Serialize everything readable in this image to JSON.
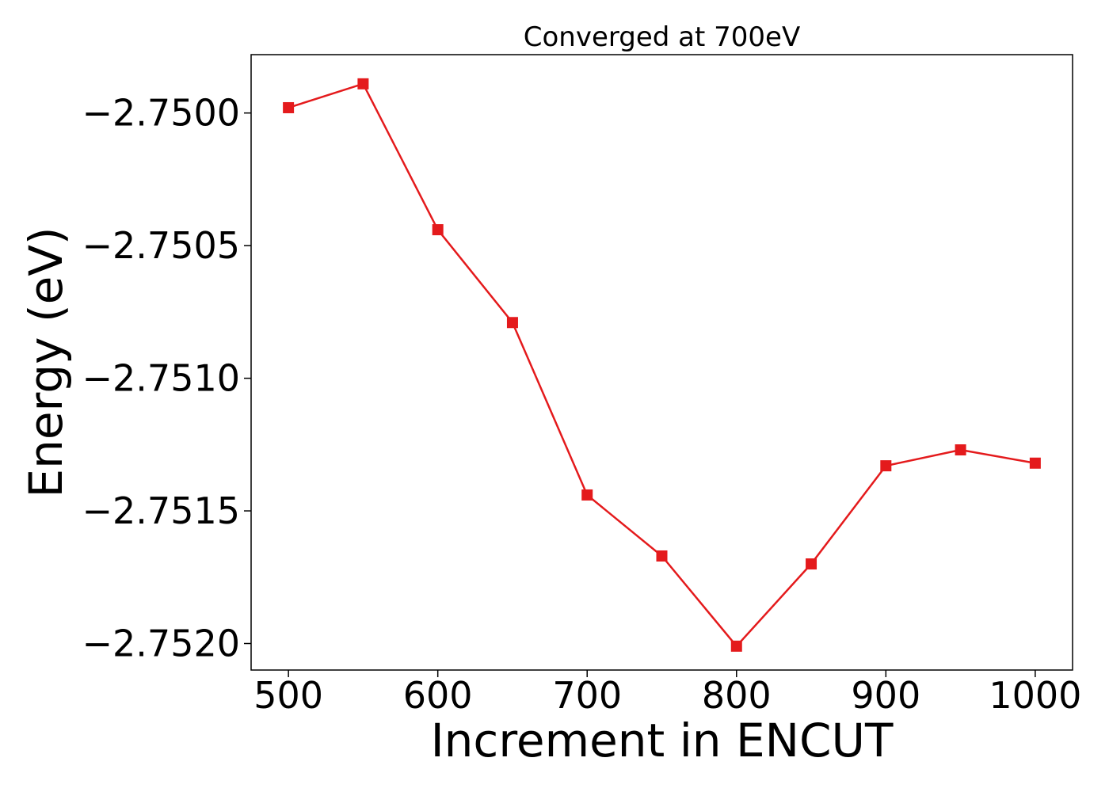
{
  "chart_data": {
    "type": "line",
    "title": "Converged at 700eV",
    "xlabel": "Increment in ENCUT",
    "ylabel": "Energy (eV)",
    "x": [
      500,
      550,
      600,
      650,
      700,
      750,
      800,
      850,
      900,
      950,
      1000
    ],
    "series": [
      {
        "values": [
          -2.74998,
          -2.74989,
          -2.75044,
          -2.75079,
          -2.75144,
          -2.75167,
          -2.75201,
          -2.7517,
          -2.75133,
          -2.75127,
          -2.75132
        ]
      }
    ],
    "xticks": [
      500,
      600,
      700,
      800,
      900,
      1000
    ],
    "xtick_labels": [
      "500",
      "600",
      "700",
      "800",
      "900",
      "1000"
    ],
    "yticks": [
      -2.75,
      -2.7505,
      -2.751,
      -2.7515,
      -2.752
    ],
    "ytick_labels": [
      "−2.7500",
      "−2.7505",
      "−2.7510",
      "−2.7515",
      "−2.7520"
    ],
    "xlim": [
      475,
      1025
    ],
    "ylim": [
      -2.7521,
      -2.74978
    ],
    "grid": false,
    "marker": "square",
    "color": "#e41a1c"
  }
}
